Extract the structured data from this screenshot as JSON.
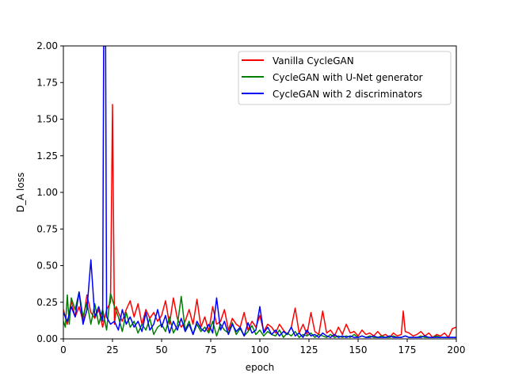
{
  "chart_data": {
    "type": "line",
    "title": "",
    "xlabel": "epoch",
    "ylabel": "D_A loss",
    "xlim": [
      0,
      200
    ],
    "ylim": [
      0,
      2.0
    ],
    "xticks": [
      "0",
      "25",
      "50",
      "75",
      "100",
      "125",
      "150",
      "175",
      "200"
    ],
    "yticks": [
      "0.00",
      "0.25",
      "0.50",
      "0.75",
      "1.00",
      "1.25",
      "1.50",
      "1.75",
      "2.00"
    ],
    "grid": false,
    "legend_position": "upper-right",
    "series": [
      {
        "name": "Vanilla CycleGAN",
        "color": "#ff0000",
        "x": [
          0,
          2,
          4,
          6,
          8,
          10,
          12,
          14,
          16,
          18,
          20,
          22,
          24,
          25,
          26,
          27,
          28,
          30,
          32,
          34,
          36,
          38,
          40,
          42,
          44,
          46,
          48,
          50,
          52,
          54,
          56,
          58,
          60,
          62,
          64,
          66,
          68,
          70,
          72,
          74,
          76,
          78,
          80,
          82,
          84,
          86,
          88,
          90,
          92,
          94,
          96,
          98,
          100,
          102,
          104,
          106,
          108,
          110,
          112,
          114,
          116,
          118,
          120,
          122,
          124,
          126,
          128,
          130,
          132,
          134,
          136,
          138,
          140,
          142,
          144,
          146,
          148,
          150,
          152,
          154,
          156,
          158,
          160,
          162,
          164,
          166,
          168,
          170,
          172,
          173,
          174,
          176,
          178,
          180,
          182,
          184,
          186,
          188,
          190,
          192,
          194,
          196,
          198,
          200
        ],
        "y": [
          0.2,
          0.1,
          0.26,
          0.15,
          0.22,
          0.12,
          0.3,
          0.18,
          0.14,
          0.2,
          0.08,
          0.2,
          0.25,
          1.6,
          0.1,
          0.22,
          0.18,
          0.12,
          0.2,
          0.26,
          0.15,
          0.24,
          0.1,
          0.2,
          0.14,
          0.18,
          0.12,
          0.16,
          0.26,
          0.1,
          0.28,
          0.14,
          0.08,
          0.12,
          0.2,
          0.1,
          0.27,
          0.08,
          0.15,
          0.05,
          0.22,
          0.1,
          0.12,
          0.2,
          0.06,
          0.14,
          0.1,
          0.08,
          0.18,
          0.06,
          0.12,
          0.08,
          0.16,
          0.05,
          0.1,
          0.08,
          0.04,
          0.1,
          0.06,
          0.03,
          0.08,
          0.21,
          0.04,
          0.1,
          0.03,
          0.18,
          0.05,
          0.03,
          0.19,
          0.04,
          0.06,
          0.02,
          0.08,
          0.03,
          0.1,
          0.04,
          0.05,
          0.02,
          0.06,
          0.03,
          0.04,
          0.02,
          0.05,
          0.02,
          0.03,
          0.01,
          0.04,
          0.02,
          0.03,
          0.19,
          0.05,
          0.04,
          0.02,
          0.03,
          0.05,
          0.02,
          0.04,
          0.01,
          0.03,
          0.02,
          0.04,
          0.01,
          0.07,
          0.08
        ]
      },
      {
        "name": "CycleGAN with U-Net generator",
        "color": "#008000",
        "x": [
          0,
          1,
          2,
          3,
          4,
          6,
          8,
          10,
          12,
          14,
          16,
          18,
          20,
          22,
          24,
          26,
          28,
          30,
          32,
          34,
          36,
          38,
          40,
          42,
          44,
          46,
          48,
          50,
          52,
          54,
          56,
          58,
          60,
          62,
          64,
          66,
          68,
          70,
          72,
          74,
          76,
          78,
          80,
          82,
          84,
          86,
          88,
          90,
          92,
          94,
          96,
          98,
          100,
          102,
          104,
          106,
          108,
          110,
          112,
          114,
          116,
          118,
          120,
          122,
          124,
          126,
          128,
          130,
          132,
          134,
          136,
          138,
          140,
          142,
          144,
          146,
          148,
          150,
          152,
          154,
          156,
          158,
          160,
          162,
          164,
          166,
          168,
          170,
          172,
          174,
          176,
          178,
          180,
          182,
          184,
          186,
          188,
          190,
          192,
          194,
          196,
          198,
          200
        ],
        "y": [
          0.12,
          0.08,
          0.3,
          0.1,
          0.28,
          0.2,
          0.32,
          0.15,
          0.25,
          0.1,
          0.24,
          0.1,
          0.2,
          0.06,
          0.31,
          0.22,
          0.15,
          0.05,
          0.18,
          0.08,
          0.12,
          0.04,
          0.1,
          0.06,
          0.14,
          0.03,
          0.08,
          0.1,
          0.05,
          0.15,
          0.04,
          0.09,
          0.29,
          0.06,
          0.12,
          0.03,
          0.1,
          0.05,
          0.08,
          0.04,
          0.12,
          0.02,
          0.1,
          0.06,
          0.04,
          0.11,
          0.03,
          0.07,
          0.02,
          0.05,
          0.09,
          0.03,
          0.06,
          0.02,
          0.05,
          0.03,
          0.02,
          0.06,
          0.01,
          0.04,
          0.02,
          0.05,
          0.01,
          0.03,
          0.02,
          0.04,
          0.01,
          0.03,
          0.02,
          0.01,
          0.03,
          0.01,
          0.02,
          0.01,
          0.02,
          0.01,
          0.03,
          0.01,
          0.02,
          0.01,
          0.02,
          0.01,
          0.01,
          0.02,
          0.01,
          0.01,
          0.02,
          0.01,
          0.01,
          0.02,
          0.01,
          0.01,
          0.01,
          0.02,
          0.01,
          0.01,
          0.01,
          0.02,
          0.01,
          0.01,
          0.01,
          0.01,
          0.01
        ]
      },
      {
        "name": "CycleGAN with 2 discriminators",
        "color": "#0000ff",
        "x": [
          0,
          2,
          4,
          6,
          8,
          10,
          12,
          14,
          16,
          18,
          20,
          20.5,
          21,
          21.5,
          22,
          24,
          26,
          28,
          30,
          32,
          34,
          36,
          38,
          40,
          42,
          44,
          46,
          48,
          50,
          52,
          54,
          56,
          58,
          60,
          62,
          64,
          66,
          68,
          70,
          72,
          74,
          76,
          78,
          80,
          82,
          84,
          86,
          88,
          90,
          92,
          94,
          96,
          98,
          100,
          102,
          104,
          106,
          108,
          110,
          112,
          114,
          116,
          118,
          120,
          122,
          124,
          126,
          128,
          130,
          132,
          134,
          136,
          138,
          140,
          142,
          144,
          146,
          148,
          150,
          152,
          154,
          156,
          158,
          160,
          162,
          164,
          166,
          168,
          170,
          172,
          174,
          176,
          178,
          180,
          182,
          184,
          186,
          188,
          190,
          192,
          194,
          196,
          198,
          200
        ],
        "y": [
          0.18,
          0.12,
          0.22,
          0.15,
          0.32,
          0.1,
          0.2,
          0.54,
          0.15,
          0.22,
          0.12,
          2.0,
          2.0,
          2.0,
          0.15,
          0.1,
          0.12,
          0.06,
          0.2,
          0.1,
          0.15,
          0.08,
          0.12,
          0.05,
          0.18,
          0.06,
          0.1,
          0.2,
          0.08,
          0.16,
          0.04,
          0.12,
          0.06,
          0.14,
          0.05,
          0.1,
          0.03,
          0.12,
          0.07,
          0.05,
          0.1,
          0.04,
          0.28,
          0.06,
          0.12,
          0.03,
          0.1,
          0.05,
          0.08,
          0.02,
          0.11,
          0.04,
          0.06,
          0.22,
          0.04,
          0.08,
          0.03,
          0.06,
          0.02,
          0.05,
          0.03,
          0.08,
          0.02,
          0.04,
          0.01,
          0.06,
          0.02,
          0.03,
          0.01,
          0.04,
          0.02,
          0.01,
          0.03,
          0.01,
          0.02,
          0.01,
          0.02,
          0.01,
          0.01,
          0.02,
          0.01,
          0.01,
          0.02,
          0.01,
          0.01,
          0.01,
          0.02,
          0.01,
          0.01,
          0.01,
          0.02,
          0.01,
          0.01,
          0.01,
          0.01,
          0.02,
          0.01,
          0.01,
          0.01,
          0.01,
          0.01,
          0.01,
          0.01,
          0.01
        ]
      }
    ]
  }
}
